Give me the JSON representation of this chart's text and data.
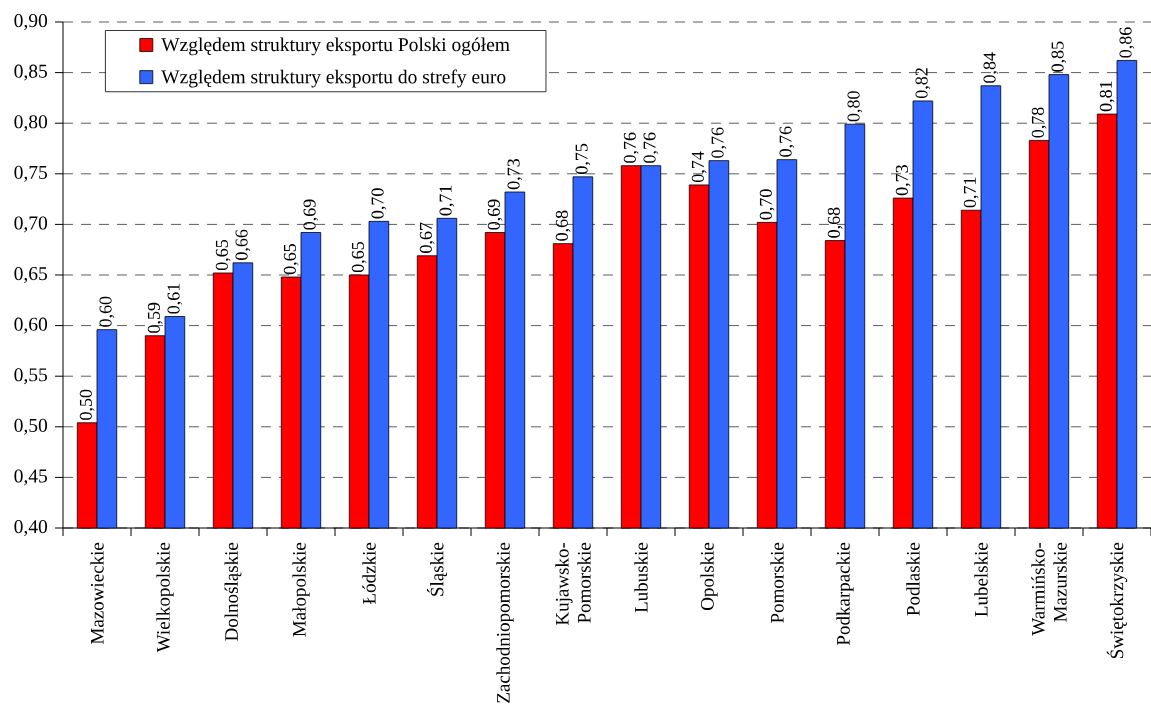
{
  "chart_data": {
    "type": "bar",
    "categories": [
      "Mazowieckie",
      "Wielkopolskie",
      "Dolnośląskie",
      "Małopolskie",
      "Łódzkie",
      "Śląskie",
      "Zachodniopomorskie",
      "Kujawsko-Pomorskie",
      "Lubuskie",
      "Opolskie",
      "Pomorskie",
      "Podkarpackie",
      "Podlaskie",
      "Lubelskie",
      "Warmińsko-Mazurskie",
      "Świętokrzyskie"
    ],
    "series": [
      {
        "name": "Względem struktury eksportu Polski ogółem",
        "color": "#ff0000",
        "values": [
          0.504,
          0.59,
          0.652,
          0.648,
          0.65,
          0.669,
          0.692,
          0.681,
          0.758,
          0.739,
          0.702,
          0.684,
          0.726,
          0.714,
          0.783,
          0.809
        ],
        "value_labels": [
          "0,50",
          "0,59",
          "0,65",
          "0,65",
          "0,65",
          "0,67",
          "0,69",
          "0,68",
          "0,76",
          "0,74",
          "0,70",
          "0,68",
          "0,73",
          "0,71",
          "0,78",
          "0,81"
        ]
      },
      {
        "name": "Względem struktury eksportu do strefy euro",
        "color": "#3366ff",
        "values": [
          0.596,
          0.609,
          0.662,
          0.692,
          0.703,
          0.706,
          0.732,
          0.747,
          0.758,
          0.763,
          0.764,
          0.799,
          0.822,
          0.837,
          0.848,
          0.862
        ],
        "value_labels": [
          "0,60",
          "0,61",
          "0,66",
          "0,69",
          "0,70",
          "0,71",
          "0,73",
          "0,75",
          "0,76",
          "0,76",
          "0,76",
          "0,80",
          "0,82",
          "0,84",
          "0,85",
          "0,86"
        ]
      }
    ],
    "ylim": [
      0.4,
      0.9
    ],
    "yticks": [
      {
        "value": 0.4,
        "label": "0,40"
      },
      {
        "value": 0.45,
        "label": "0,45"
      },
      {
        "value": 0.5,
        "label": "0,50"
      },
      {
        "value": 0.55,
        "label": "0,55"
      },
      {
        "value": 0.6,
        "label": "0,60"
      },
      {
        "value": 0.65,
        "label": "0,65"
      },
      {
        "value": 0.7,
        "label": "0,70"
      },
      {
        "value": 0.75,
        "label": "0,75"
      },
      {
        "value": 0.8,
        "label": "0,80"
      },
      {
        "value": 0.85,
        "label": "0,85"
      },
      {
        "value": 0.9,
        "label": "0,90"
      }
    ],
    "grid": "y",
    "legend": "top left"
  }
}
